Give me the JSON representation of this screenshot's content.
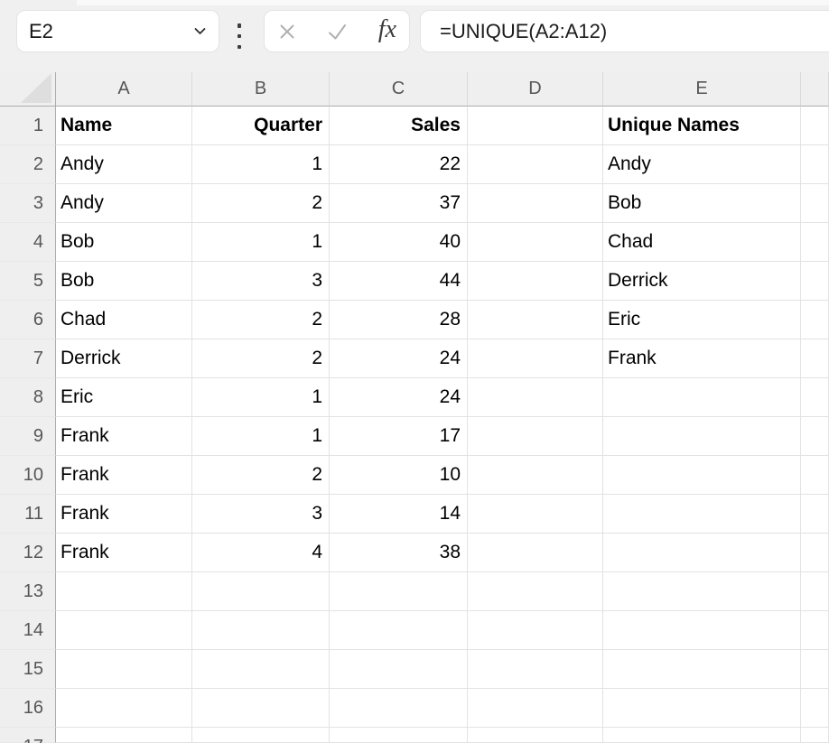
{
  "toolbar": {
    "cell_reference": "E2",
    "formula": "=UNIQUE(A2:A12)",
    "fx_label": "fx"
  },
  "grid": {
    "column_headers": [
      "A",
      "B",
      "C",
      "D",
      "E",
      ""
    ],
    "rows": [
      {
        "num": "1",
        "bold": true,
        "cells": [
          "Name",
          "Quarter",
          "Sales",
          "",
          "Unique Names",
          ""
        ]
      },
      {
        "num": "2",
        "cells": [
          "Andy",
          "1",
          "22",
          "",
          "Andy",
          ""
        ]
      },
      {
        "num": "3",
        "cells": [
          "Andy",
          "2",
          "37",
          "",
          "Bob",
          ""
        ]
      },
      {
        "num": "4",
        "cells": [
          "Bob",
          "1",
          "40",
          "",
          "Chad",
          ""
        ]
      },
      {
        "num": "5",
        "cells": [
          "Bob",
          "3",
          "44",
          "",
          "Derrick",
          ""
        ]
      },
      {
        "num": "6",
        "cells": [
          "Chad",
          "2",
          "28",
          "",
          "Eric",
          ""
        ]
      },
      {
        "num": "7",
        "cells": [
          "Derrick",
          "2",
          "24",
          "",
          "Frank",
          ""
        ]
      },
      {
        "num": "8",
        "cells": [
          "Eric",
          "1",
          "24",
          "",
          "",
          ""
        ]
      },
      {
        "num": "9",
        "cells": [
          "Frank",
          "1",
          "17",
          "",
          "",
          ""
        ]
      },
      {
        "num": "10",
        "cells": [
          "Frank",
          "2",
          "10",
          "",
          "",
          ""
        ]
      },
      {
        "num": "11",
        "cells": [
          "Frank",
          "3",
          "14",
          "",
          "",
          ""
        ]
      },
      {
        "num": "12",
        "cells": [
          "Frank",
          "4",
          "38",
          "",
          "",
          ""
        ]
      },
      {
        "num": "13",
        "cells": [
          "",
          "",
          "",
          "",
          "",
          ""
        ]
      },
      {
        "num": "14",
        "cells": [
          "",
          "",
          "",
          "",
          "",
          ""
        ]
      },
      {
        "num": "15",
        "cells": [
          "",
          "",
          "",
          "",
          "",
          ""
        ]
      },
      {
        "num": "16",
        "cells": [
          "",
          "",
          "",
          "",
          "",
          ""
        ]
      },
      {
        "num": "17",
        "cells": [
          "",
          "",
          "",
          "",
          "",
          ""
        ]
      }
    ]
  },
  "colors": {
    "toolbar_bg": "#f0f0f0",
    "header_bg": "#efefef",
    "gridline": "#e2e2e2",
    "header_border": "#acacac",
    "disabled_icon_gray": "#b0b0b0",
    "cell_text": "#000000"
  }
}
